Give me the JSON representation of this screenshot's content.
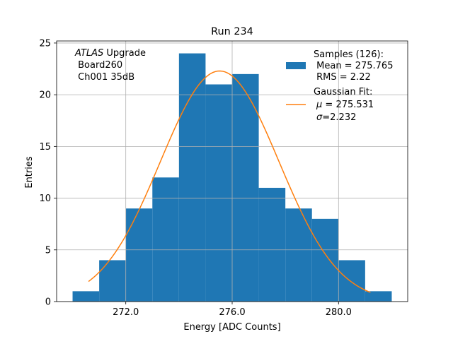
{
  "chart_data": {
    "type": "bar",
    "title": "Run 234",
    "xlabel": "Energy [ADC Counts]",
    "ylabel": "Entries",
    "xlim": [
      269.4,
      282.6
    ],
    "ylim": [
      0,
      25.2
    ],
    "grid": true,
    "x_ticks": [
      {
        "value": 272,
        "label": "272.0"
      },
      {
        "value": 276,
        "label": "276.0"
      },
      {
        "value": 280,
        "label": "280.0"
      }
    ],
    "y_ticks": [
      {
        "value": 0,
        "label": "0"
      },
      {
        "value": 5,
        "label": "5"
      },
      {
        "value": 10,
        "label": "10"
      },
      {
        "value": 15,
        "label": "15"
      },
      {
        "value": 20,
        "label": "20"
      },
      {
        "value": 25,
        "label": "25"
      }
    ],
    "histogram": {
      "name": "Samples",
      "color": "#1f77b4",
      "bin_edges": [
        270,
        271,
        272,
        273,
        274,
        275,
        276,
        277,
        278,
        279,
        280,
        281,
        282
      ],
      "counts": [
        1,
        4,
        9,
        12,
        24,
        21,
        22,
        11,
        9,
        8,
        4,
        1
      ]
    },
    "fit": {
      "name": "Gaussian Fit",
      "color": "#ff7f0e",
      "mu": 275.531,
      "sigma": 2.232,
      "amplitude": 22.3,
      "x_range": [
        270.6,
        281.2
      ]
    },
    "annotation": {
      "experiment": "ATLAS",
      "line1_rest": " Upgrade",
      "line2": " Board260",
      "line3": " Ch001 35dB"
    },
    "legend": {
      "position": "top-right",
      "samples_title": "Samples (126):",
      "samples_mean": " Mean = 275.765",
      "samples_rms": " RMS = 2.22",
      "fit_title": "Gaussian Fit:",
      "fit_mu_symbol": "μ",
      "fit_mu_value": " = 275.531",
      "fit_sigma_symbol": "σ",
      "fit_sigma_value": "=2.232"
    }
  }
}
